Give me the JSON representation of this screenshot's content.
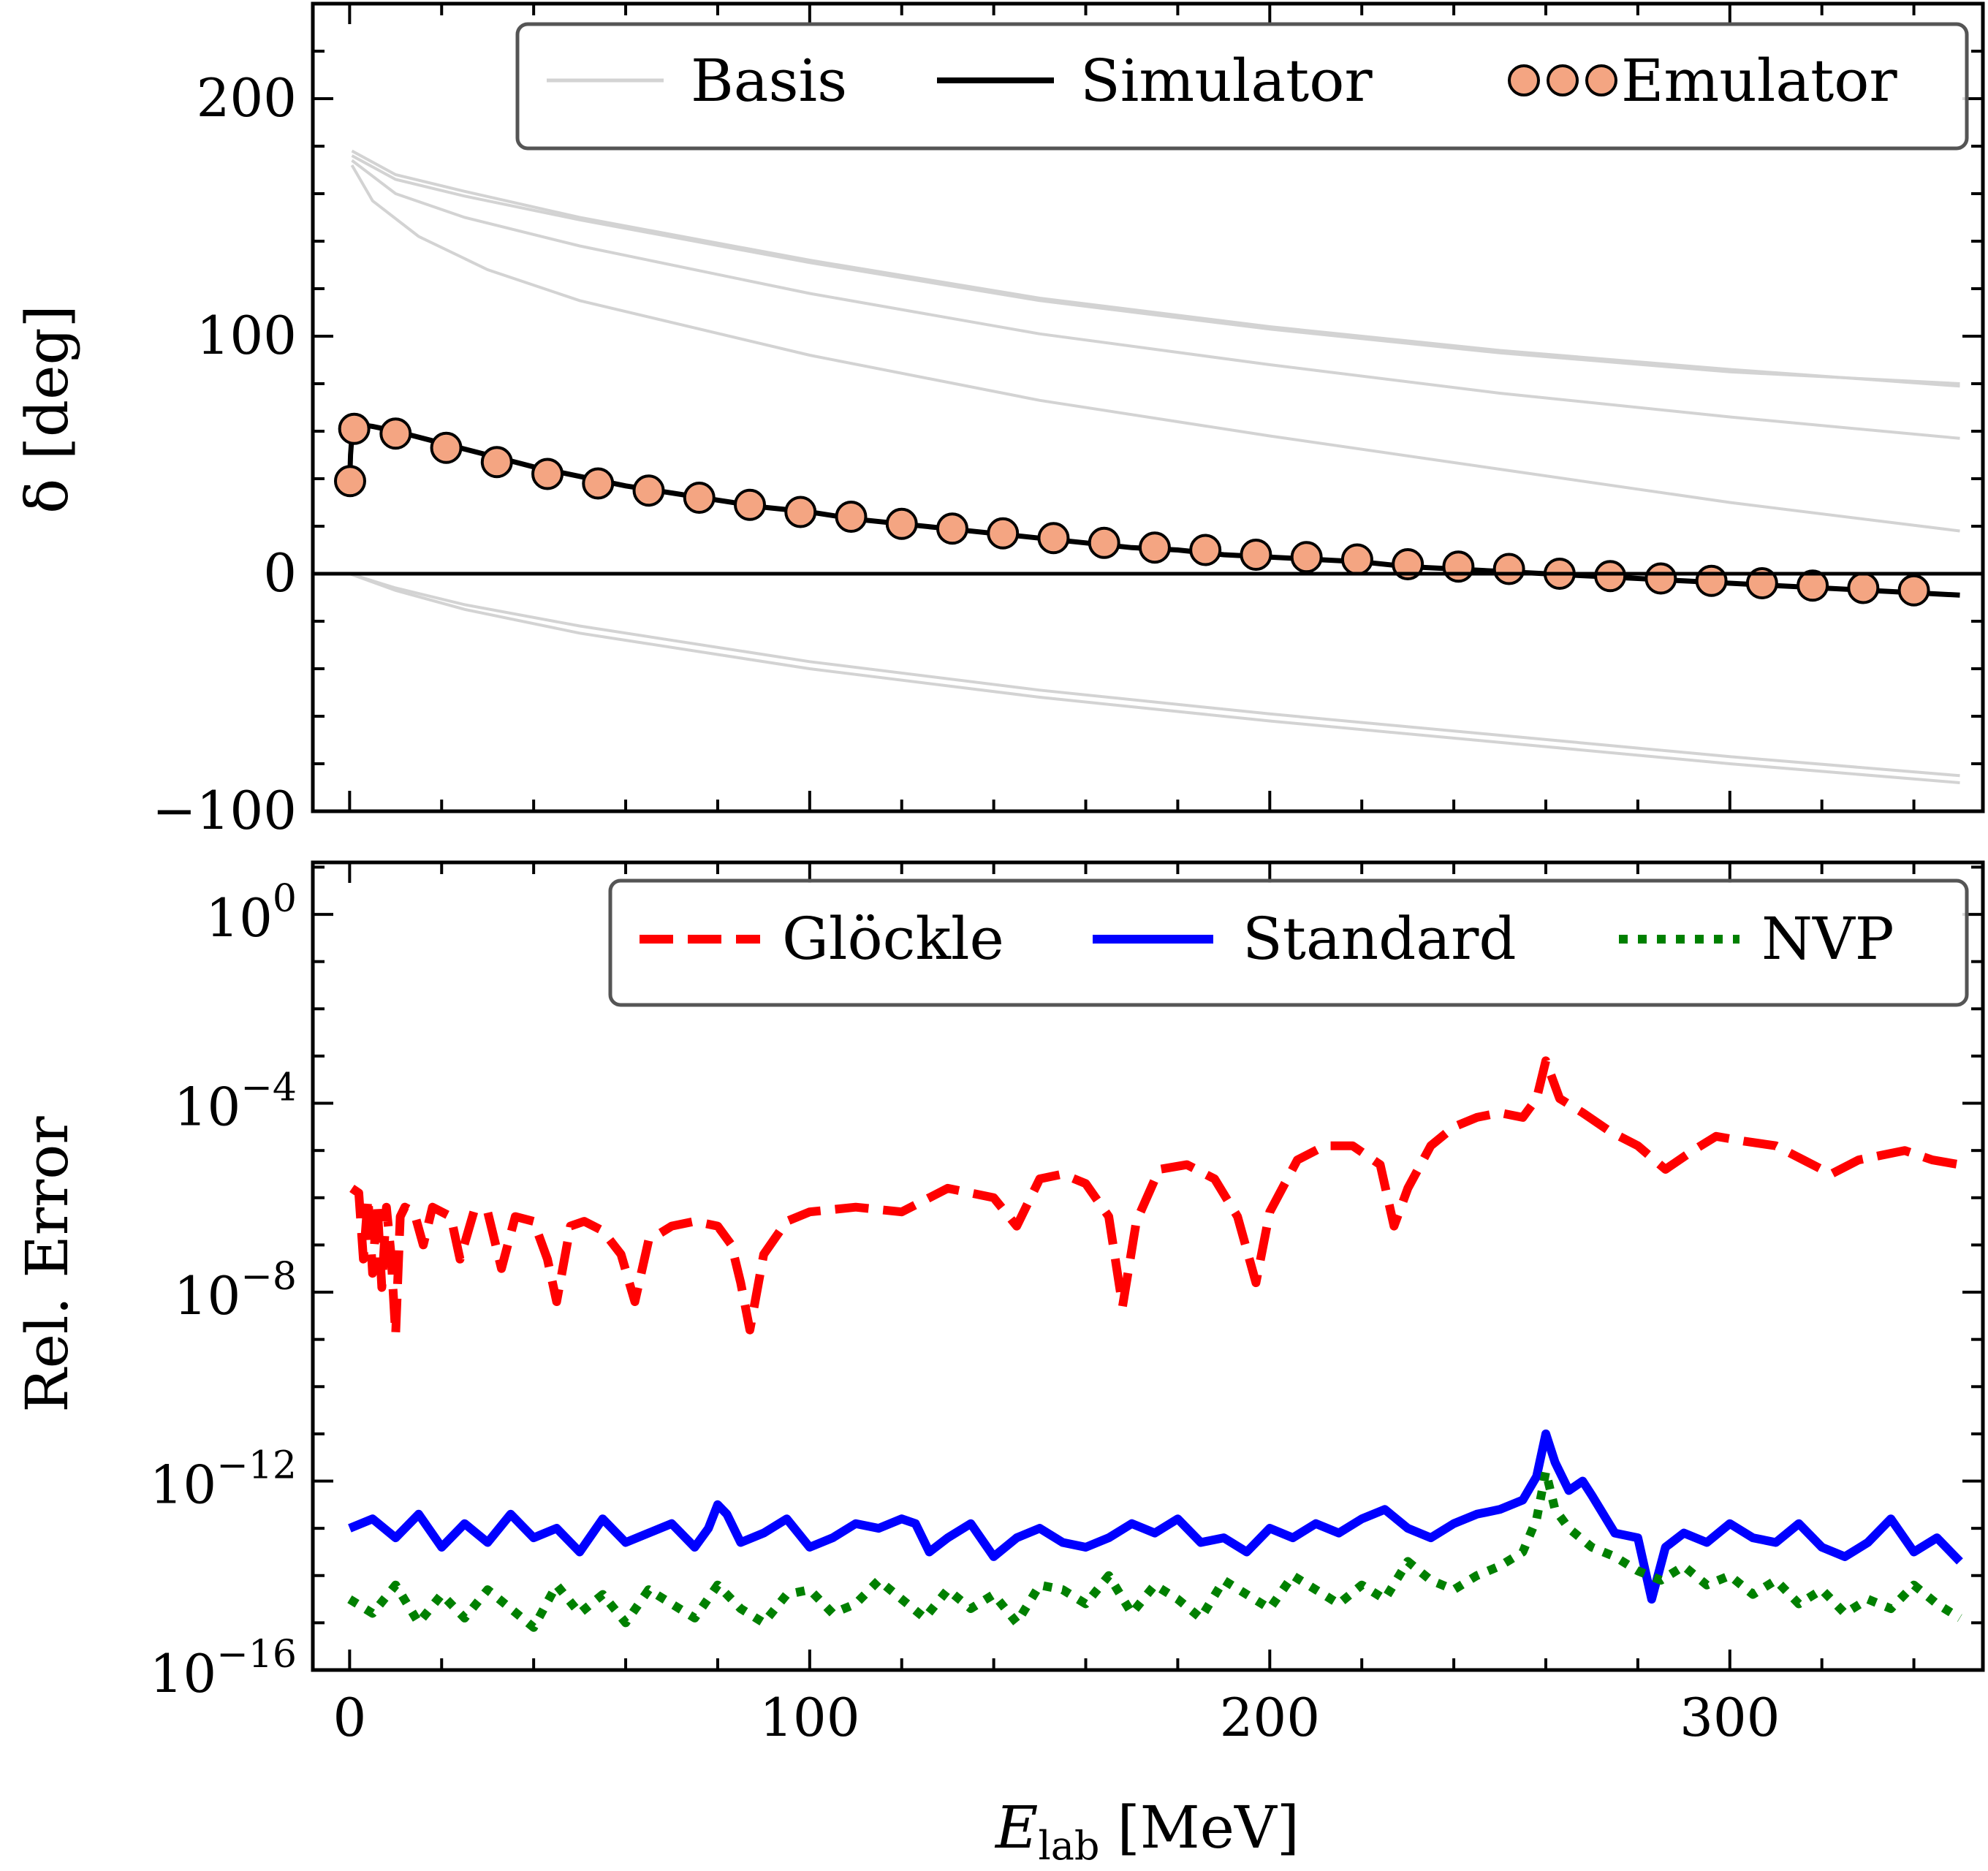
{
  "chart_data": [
    {
      "panel": "top",
      "type": "line",
      "ylabel": "δ [deg]",
      "xlabel": "",
      "xlim": [
        -8,
        355
      ],
      "ylim": [
        -100,
        240
      ],
      "yticks": [
        -100,
        0,
        100,
        200
      ],
      "ytick_labels": [
        "−100",
        "0",
        "100",
        "200"
      ],
      "legend_position": "top-right",
      "legend": [
        "Basis",
        "Simulator",
        "Emulator"
      ],
      "series": [
        {
          "name": "Basis",
          "color": "#d3d3d3",
          "x": [
            0.5,
            10,
            25,
            50,
            100,
            150,
            200,
            250,
            300,
            350
          ],
          "y": [
            178,
            168,
            161,
            150,
            132,
            116,
            104,
            94,
            86,
            79
          ]
        },
        {
          "name": "Basis",
          "color": "#d3d3d3",
          "x": [
            0.5,
            10,
            25,
            50,
            100,
            150,
            200,
            250,
            300,
            350
          ],
          "y": [
            176,
            166,
            159,
            149,
            131,
            115,
            103,
            93,
            85,
            80
          ]
        },
        {
          "name": "Basis",
          "color": "#d3d3d3",
          "x": [
            0.5,
            10,
            25,
            50,
            100,
            150,
            200,
            250,
            300,
            350
          ],
          "y": [
            174,
            160,
            150,
            138,
            118,
            101,
            88,
            76,
            66,
            57
          ]
        },
        {
          "name": "Basis",
          "color": "#d3d3d3",
          "x": [
            0.5,
            5,
            15,
            30,
            50,
            100,
            150,
            200,
            250,
            300,
            350
          ],
          "y": [
            172,
            157,
            142,
            128,
            115,
            92,
            73,
            58,
            44,
            30,
            18
          ]
        },
        {
          "name": "Basis",
          "color": "#d3d3d3",
          "x": [
            0,
            10,
            25,
            50,
            100,
            150,
            200,
            250,
            300,
            350
          ],
          "y": [
            0,
            -6,
            -13,
            -22,
            -37,
            -49,
            -59,
            -68,
            -77,
            -85
          ]
        },
        {
          "name": "Basis",
          "color": "#d3d3d3",
          "x": [
            0,
            10,
            25,
            50,
            100,
            150,
            200,
            250,
            300,
            350
          ],
          "y": [
            0,
            -7,
            -15,
            -25,
            -40,
            -52,
            -62,
            -71,
            -80,
            -88
          ]
        },
        {
          "name": "Simulator",
          "color": "#000000",
          "x": [
            0,
            0.2,
            0.5,
            1,
            2,
            5,
            10,
            20,
            30,
            40,
            50,
            60,
            70,
            80,
            90,
            100,
            110,
            120,
            130,
            140,
            150,
            160,
            170,
            180,
            190,
            200,
            210,
            220,
            230,
            240,
            250,
            260,
            270,
            280,
            290,
            300,
            310,
            320,
            330,
            340,
            350
          ],
          "y": [
            38,
            50,
            58,
            62,
            63,
            62,
            60,
            55,
            50,
            45,
            41,
            37,
            34,
            31,
            28,
            26,
            23,
            21,
            19,
            17,
            15,
            13,
            11,
            10,
            8,
            7,
            6,
            5,
            3,
            2,
            1,
            0,
            -1,
            -2,
            -3,
            -4,
            -5,
            -6,
            -7,
            -8,
            -9
          ]
        },
        {
          "name": "Emulator",
          "color": "#f4a582",
          "x": [
            0.1,
            1,
            10,
            21,
            32,
            43,
            54,
            65,
            76,
            87,
            98,
            109,
            120,
            131,
            142,
            153,
            164,
            175,
            186,
            197,
            208,
            219,
            230,
            241,
            252,
            263,
            274,
            285,
            296,
            307,
            318,
            329,
            340
          ],
          "y": [
            39,
            61,
            59,
            53,
            47,
            42,
            38,
            35,
            32,
            29,
            26,
            24,
            21,
            19,
            17,
            15,
            13,
            11,
            10,
            8,
            7,
            6,
            4,
            3,
            2,
            0,
            -1,
            -2,
            -3,
            -4,
            -5,
            -6,
            -7
          ]
        }
      ]
    },
    {
      "panel": "bottom",
      "type": "line",
      "yscale": "log",
      "ylabel": "Rel. Error",
      "xlabel": "E_lab [MeV]",
      "xlabel_main": "E",
      "xlabel_sub": "lab",
      "xlabel_unit": "[MeV]",
      "xlim": [
        -8,
        355
      ],
      "ylim_log10": [
        -16,
        1.1
      ],
      "yticks_log10": [
        0,
        -4,
        -8,
        -12,
        -16
      ],
      "ytick_labels": [
        {
          "base": "10",
          "exp": "0"
        },
        {
          "base": "10",
          "exp": "−4"
        },
        {
          "base": "10",
          "exp": "−8"
        },
        {
          "base": "10",
          "exp": "−12"
        },
        {
          "base": "10",
          "exp": "−16"
        }
      ],
      "xticks": [
        0,
        100,
        200,
        300
      ],
      "xtick_labels": [
        "0",
        "100",
        "200",
        "300"
      ],
      "legend_position": "top-right",
      "legend": [
        "Glöckle",
        "Standard",
        "NVP"
      ],
      "series": [
        {
          "name": "Glöckle",
          "color": "#ff0000",
          "style": "dashed",
          "x": [
            0.5,
            2,
            3,
            4,
            5,
            6,
            7,
            8,
            9,
            10,
            11,
            12,
            14,
            16,
            18,
            20,
            22,
            24,
            27,
            30,
            33,
            36,
            40,
            43,
            45,
            48,
            51,
            55,
            59,
            62,
            65,
            70,
            75,
            80,
            83,
            85,
            87,
            90,
            95,
            100,
            110,
            120,
            130,
            135,
            140,
            145,
            150,
            155,
            160,
            165,
            168,
            171,
            176,
            182,
            188,
            193,
            197,
            200,
            206,
            212,
            218,
            224,
            227,
            230,
            235,
            240,
            245,
            250,
            255,
            258,
            260,
            263,
            268,
            274,
            280,
            286,
            292,
            297,
            303,
            310,
            316,
            322,
            328,
            333,
            338,
            344,
            350
          ],
          "logy": [
            -5.8,
            -5.9,
            -7.3,
            -6.0,
            -7.6,
            -6.1,
            -7.9,
            -6.2,
            -7.2,
            -8.9,
            -6.4,
            -6.2,
            -6.3,
            -7.0,
            -6.2,
            -6.3,
            -6.4,
            -7.3,
            -6.3,
            -6.3,
            -7.5,
            -6.4,
            -6.5,
            -7.3,
            -8.2,
            -6.6,
            -6.5,
            -6.7,
            -7.2,
            -8.2,
            -6.9,
            -6.6,
            -6.5,
            -6.6,
            -7.0,
            -7.8,
            -8.8,
            -7.2,
            -6.5,
            -6.3,
            -6.2,
            -6.3,
            -5.8,
            -5.9,
            -6.0,
            -6.6,
            -5.6,
            -5.5,
            -5.7,
            -6.4,
            -8.3,
            -6.5,
            -5.4,
            -5.3,
            -5.6,
            -6.4,
            -7.8,
            -6.3,
            -5.2,
            -4.9,
            -4.9,
            -5.3,
            -6.6,
            -5.8,
            -4.9,
            -4.5,
            -4.3,
            -4.2,
            -4.3,
            -3.9,
            -3.1,
            -3.9,
            -4.2,
            -4.6,
            -4.9,
            -5.4,
            -5.0,
            -4.7,
            -4.8,
            -4.9,
            -5.2,
            -5.5,
            -5.2,
            -5.1,
            -5.0,
            -5.2,
            -5.3
          ]
        },
        {
          "name": "Standard",
          "color": "#0000ff",
          "style": "solid",
          "x": [
            0,
            5,
            10,
            15,
            20,
            25,
            30,
            35,
            40,
            45,
            50,
            55,
            60,
            65,
            70,
            75,
            78,
            80,
            82,
            85,
            90,
            95,
            100,
            105,
            110,
            115,
            120,
            123,
            126,
            130,
            135,
            140,
            145,
            150,
            155,
            160,
            165,
            170,
            175,
            180,
            185,
            190,
            195,
            200,
            205,
            210,
            215,
            220,
            225,
            230,
            235,
            240,
            245,
            250,
            255,
            258,
            260,
            262,
            265,
            268,
            270,
            275,
            280,
            283,
            286,
            290,
            295,
            300,
            305,
            310,
            315,
            320,
            325,
            330,
            335,
            340,
            345,
            350
          ],
          "logy": [
            -13.0,
            -12.8,
            -13.2,
            -12.7,
            -13.4,
            -12.9,
            -13.3,
            -12.7,
            -13.2,
            -13.0,
            -13.5,
            -12.8,
            -13.3,
            -13.1,
            -12.9,
            -13.4,
            -13.0,
            -12.5,
            -12.7,
            -13.3,
            -13.1,
            -12.8,
            -13.4,
            -13.2,
            -12.9,
            -13.0,
            -12.8,
            -12.9,
            -13.5,
            -13.2,
            -12.9,
            -13.6,
            -13.2,
            -13.0,
            -13.3,
            -13.4,
            -13.2,
            -12.9,
            -13.1,
            -12.8,
            -13.3,
            -13.2,
            -13.5,
            -13.0,
            -13.2,
            -12.9,
            -13.1,
            -12.8,
            -12.6,
            -13.0,
            -13.2,
            -12.9,
            -12.7,
            -12.6,
            -12.4,
            -11.9,
            -11.0,
            -11.6,
            -12.2,
            -12.0,
            -12.3,
            -13.1,
            -13.2,
            -14.5,
            -13.4,
            -13.1,
            -13.3,
            -12.9,
            -13.2,
            -13.3,
            -12.9,
            -13.4,
            -13.6,
            -13.3,
            -12.8,
            -13.5,
            -13.2,
            -13.7
          ]
        },
        {
          "name": "NVP",
          "color": "#008000",
          "style": "dotted",
          "x": [
            0,
            5,
            10,
            15,
            20,
            25,
            30,
            35,
            40,
            45,
            50,
            55,
            60,
            65,
            70,
            75,
            80,
            85,
            90,
            95,
            100,
            105,
            110,
            115,
            120,
            125,
            130,
            135,
            140,
            145,
            150,
            155,
            160,
            165,
            170,
            175,
            180,
            185,
            190,
            195,
            200,
            205,
            210,
            215,
            220,
            225,
            230,
            235,
            240,
            245,
            250,
            255,
            258,
            260,
            262,
            265,
            270,
            275,
            280,
            285,
            290,
            295,
            300,
            305,
            310,
            315,
            320,
            325,
            330,
            335,
            340,
            345,
            350
          ],
          "logy": [
            -14.5,
            -14.8,
            -14.2,
            -15.0,
            -14.4,
            -14.9,
            -14.3,
            -14.7,
            -15.1,
            -14.2,
            -14.8,
            -14.4,
            -15.0,
            -14.3,
            -14.6,
            -14.9,
            -14.2,
            -14.7,
            -15.0,
            -14.4,
            -14.3,
            -14.8,
            -14.6,
            -14.1,
            -14.5,
            -14.9,
            -14.3,
            -14.7,
            -14.4,
            -15.0,
            -14.2,
            -14.3,
            -14.6,
            -14.0,
            -14.8,
            -14.2,
            -14.5,
            -14.9,
            -14.1,
            -14.4,
            -14.7,
            -14.0,
            -14.3,
            -14.6,
            -14.2,
            -14.5,
            -13.7,
            -14.1,
            -14.3,
            -14.0,
            -13.8,
            -13.5,
            -12.8,
            -11.8,
            -12.6,
            -13.0,
            -13.4,
            -13.6,
            -13.9,
            -14.1,
            -13.8,
            -14.2,
            -14.0,
            -14.4,
            -14.1,
            -14.6,
            -14.3,
            -14.8,
            -14.5,
            -14.7,
            -14.2,
            -14.6,
            -14.9
          ]
        }
      ]
    }
  ]
}
